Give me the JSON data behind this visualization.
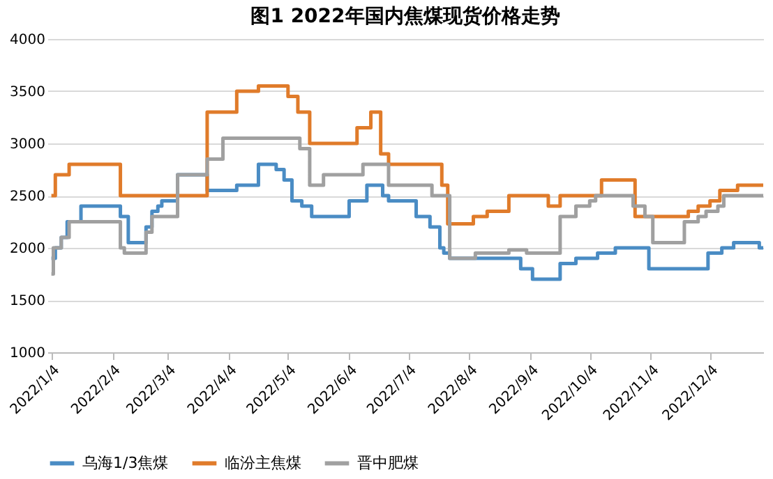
{
  "chart_data": {
    "type": "step",
    "title": "图1  2022年国内焦煤现货价格走势",
    "xlim": [
      "2022-01-02",
      "2022-12-31"
    ],
    "xticks": [
      {
        "value": "2022-01-04",
        "label": "2022/1/4"
      },
      {
        "value": "2022-02-04",
        "label": "2022/2/4"
      },
      {
        "value": "2022-03-04",
        "label": "2022/3/4"
      },
      {
        "value": "2022-04-04",
        "label": "2022/4/4"
      },
      {
        "value": "2022-05-04",
        "label": "2022/5/4"
      },
      {
        "value": "2022-06-04",
        "label": "2022/6/4"
      },
      {
        "value": "2022-07-04",
        "label": "2022/7/4"
      },
      {
        "value": "2022-08-04",
        "label": "2022/8/4"
      },
      {
        "value": "2022-09-04",
        "label": "2022/9/4"
      },
      {
        "value": "2022-10-04",
        "label": "2022/10/4"
      },
      {
        "value": "2022-11-04",
        "label": "2022/11/4"
      },
      {
        "value": "2022-12-04",
        "label": "2022/12/4"
      }
    ],
    "ylim": [
      1000,
      4000
    ],
    "yticks": [
      1000,
      1500,
      2000,
      2500,
      3000,
      3500,
      4000
    ],
    "grid": "y",
    "legend": "bottom",
    "line_style": "solid",
    "marker": "none",
    "series": [
      {
        "name": "乌海1/3焦煤",
        "color": "#4a8cc4",
        "x": [
          "2022-01-04",
          "2022-01-06",
          "2022-01-09",
          "2022-01-12",
          "2022-01-19",
          "2022-02-08",
          "2022-02-12",
          "2022-02-21",
          "2022-02-24",
          "2022-02-27",
          "2022-03-01",
          "2022-03-09",
          "2022-03-24",
          "2022-04-08",
          "2022-04-19",
          "2022-04-28",
          "2022-05-02",
          "2022-05-06",
          "2022-05-11",
          "2022-05-16",
          "2022-05-22",
          "2022-06-04",
          "2022-06-08",
          "2022-06-13",
          "2022-06-21",
          "2022-06-24",
          "2022-07-08",
          "2022-07-15",
          "2022-07-20",
          "2022-07-22",
          "2022-07-25",
          "2022-08-30",
          "2022-09-05",
          "2022-09-19",
          "2022-09-21",
          "2022-09-27",
          "2022-10-08",
          "2022-10-17",
          "2022-11-03",
          "2022-12-03",
          "2022-12-05",
          "2022-12-10",
          "2022-12-16",
          "2022-12-29",
          "2022-12-31"
        ],
        "values": [
          1900,
          2000,
          2100,
          2250,
          2400,
          2300,
          2050,
          2200,
          2350,
          2400,
          2450,
          2700,
          2550,
          2600,
          2800,
          2750,
          2650,
          2450,
          2400,
          2300,
          2300,
          2450,
          2450,
          2600,
          2500,
          2450,
          2300,
          2200,
          2000,
          1950,
          1900,
          1800,
          1700,
          1850,
          1850,
          1900,
          1950,
          2000,
          1800,
          1950,
          1950,
          2000,
          2050,
          2000,
          2000
        ]
      },
      {
        "name": "临汾主焦煤",
        "color": "#e07b2a",
        "x": [
          "2022-01-04",
          "2022-01-06",
          "2022-01-13",
          "2022-02-08",
          "2022-03-24",
          "2022-04-08",
          "2022-04-19",
          "2022-05-04",
          "2022-05-09",
          "2022-05-15",
          "2022-06-08",
          "2022-06-15",
          "2022-06-20",
          "2022-06-24",
          "2022-06-27",
          "2022-07-21",
          "2022-07-24",
          "2022-07-26",
          "2022-08-06",
          "2022-08-13",
          "2022-08-24",
          "2022-09-13",
          "2022-09-19",
          "2022-10-10",
          "2022-10-27",
          "2022-11-23",
          "2022-11-28",
          "2022-12-04",
          "2022-12-09",
          "2022-12-14",
          "2022-12-18",
          "2022-12-31"
        ],
        "values": [
          2500,
          2700,
          2800,
          2500,
          3300,
          3500,
          3550,
          3450,
          3300,
          3000,
          3150,
          3300,
          2900,
          2800,
          2800,
          2600,
          2230,
          2230,
          2300,
          2350,
          2500,
          2400,
          2500,
          2650,
          2300,
          2350,
          2400,
          2450,
          2550,
          2550,
          2600,
          2600
        ]
      },
      {
        "name": "晋中肥煤",
        "color": "#a0a0a0",
        "x": [
          "2022-01-04",
          "2022-01-05",
          "2022-01-09",
          "2022-01-13",
          "2022-02-08",
          "2022-02-10",
          "2022-02-13",
          "2022-02-21",
          "2022-02-24",
          "2022-03-02",
          "2022-03-09",
          "2022-03-24",
          "2022-03-26",
          "2022-04-01",
          "2022-05-10",
          "2022-05-15",
          "2022-05-22",
          "2022-06-08",
          "2022-06-11",
          "2022-06-21",
          "2022-06-24",
          "2022-07-16",
          "2022-07-21",
          "2022-07-25",
          "2022-08-07",
          "2022-08-24",
          "2022-09-02",
          "2022-09-18",
          "2022-09-19",
          "2022-09-27",
          "2022-10-04",
          "2022-10-07",
          "2022-10-26",
          "2022-11-01",
          "2022-11-05",
          "2022-11-19",
          "2022-11-21",
          "2022-11-28",
          "2022-12-02",
          "2022-12-08",
          "2022-12-11",
          "2022-12-31"
        ],
        "values": [
          1750,
          2000,
          2100,
          2250,
          2000,
          1950,
          1950,
          2150,
          2300,
          2300,
          2700,
          2850,
          2850,
          3050,
          2950,
          2600,
          2700,
          2700,
          2800,
          2800,
          2600,
          2500,
          2500,
          1900,
          1950,
          1980,
          1950,
          1950,
          2300,
          2400,
          2450,
          2500,
          2400,
          2300,
          2050,
          2050,
          2250,
          2300,
          2350,
          2400,
          2500,
          2500
        ]
      }
    ]
  }
}
